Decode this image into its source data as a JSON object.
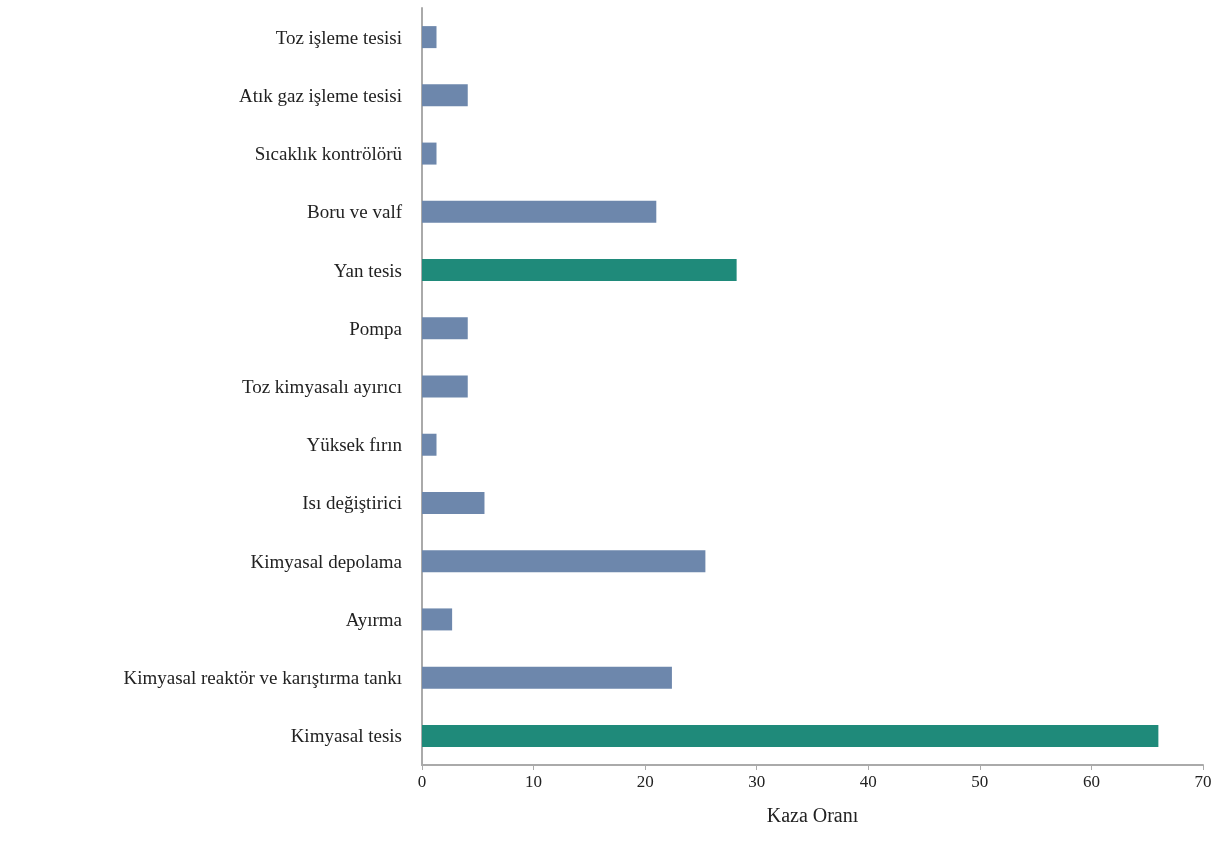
{
  "chart_data": {
    "type": "bar",
    "orientation": "horizontal",
    "xlabel": "Kaza Oranı",
    "categories": [
      "Toz işleme tesisi",
      "Atık gaz işleme tesisi",
      "Sıcaklık kontrölörü",
      "Boru ve valf",
      "Yan tesis",
      "Pompa",
      "Toz kimyasalı ayırıcı",
      "Yüksek fırın",
      "Isı değiştirici",
      "Kimyasal depolama",
      "Ayırma",
      "Kimyasal reaktör ve karıştırma tankı",
      "Kimyasal tesis"
    ],
    "values": [
      1.3,
      4.1,
      1.3,
      21.0,
      28.2,
      4.1,
      4.1,
      1.3,
      5.6,
      25.4,
      2.7,
      22.4,
      66.0
    ],
    "colors": [
      "#6d87ac",
      "#6d87ac",
      "#6d87ac",
      "#6d87ac",
      "#1f8a7a",
      "#6d87ac",
      "#6d87ac",
      "#6d87ac",
      "#6d87ac",
      "#6d87ac",
      "#6d87ac",
      "#6d87ac",
      "#1f8a7a"
    ],
    "xlim": [
      0,
      70
    ],
    "xticks": [
      0,
      10,
      20,
      30,
      40,
      50,
      60,
      70
    ],
    "grid": false
  }
}
